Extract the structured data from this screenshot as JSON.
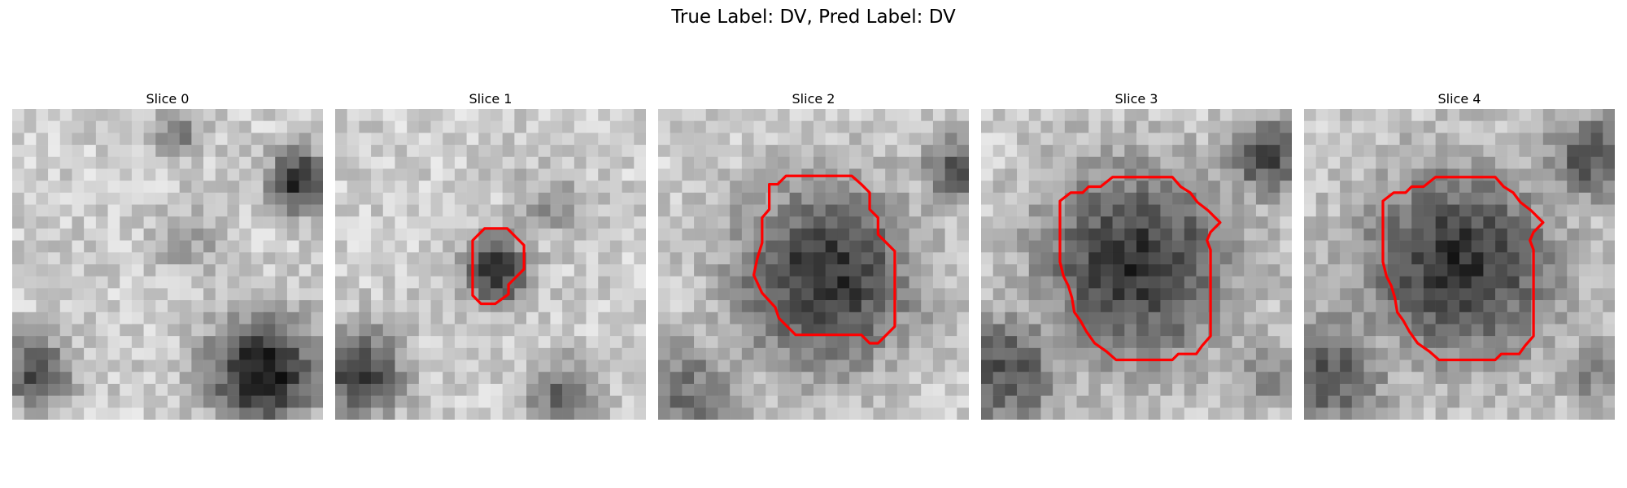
{
  "figure": {
    "title": "True Label: DV, Pred Label: DV"
  },
  "panels": [
    {
      "title": "Slice 0",
      "has_contour": false
    },
    {
      "title": "Slice 1",
      "has_contour": true
    },
    {
      "title": "Slice 2",
      "has_contour": true
    },
    {
      "title": "Slice 3",
      "has_contour": true
    },
    {
      "title": "Slice 4",
      "has_contour": true
    }
  ],
  "colors": {
    "contour": "#ff0000"
  }
}
